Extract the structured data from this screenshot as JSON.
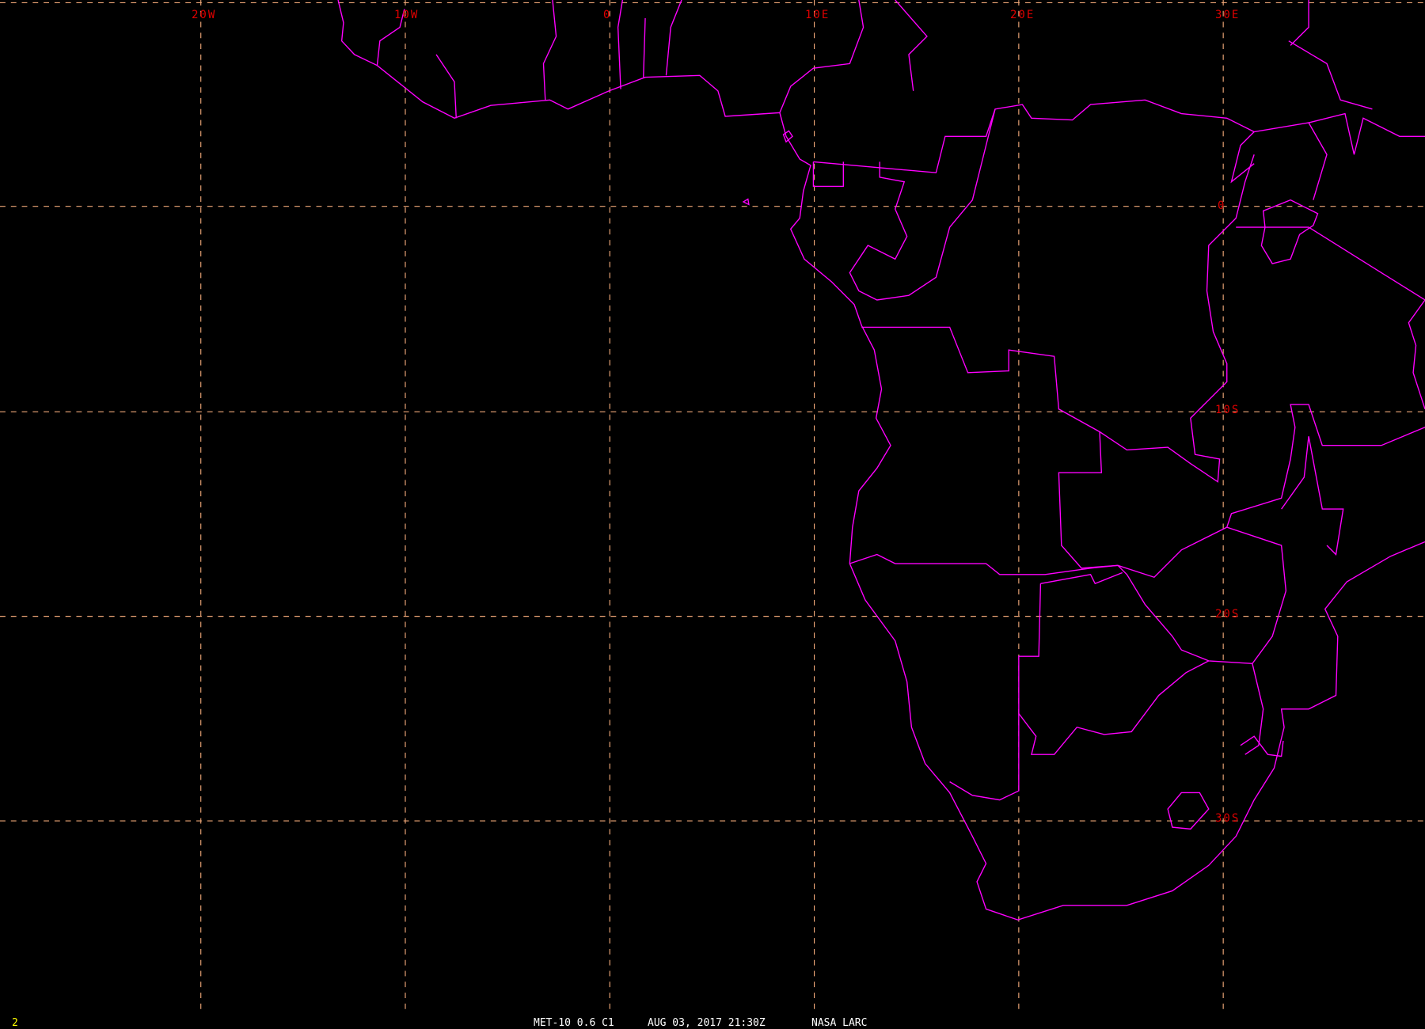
{
  "map": {
    "colors": {
      "background": "#000000",
      "grid": "#f0a878",
      "coast": "#ff00ff",
      "grid_label": "#e00000",
      "footer": "#ffffff",
      "frame_number": "#ffff00"
    },
    "longitude_labels": [
      "20W",
      "10W",
      "0",
      "10E",
      "20E",
      "30E"
    ],
    "latitude_labels": [
      "0",
      "10S",
      "20S",
      "30S"
    ]
  },
  "footer": {
    "frame_number": "2",
    "satellite": "MET-10 0.6 C1",
    "datetime": "AUG 03, 2017 21:30Z",
    "source": "NASA LARC"
  }
}
